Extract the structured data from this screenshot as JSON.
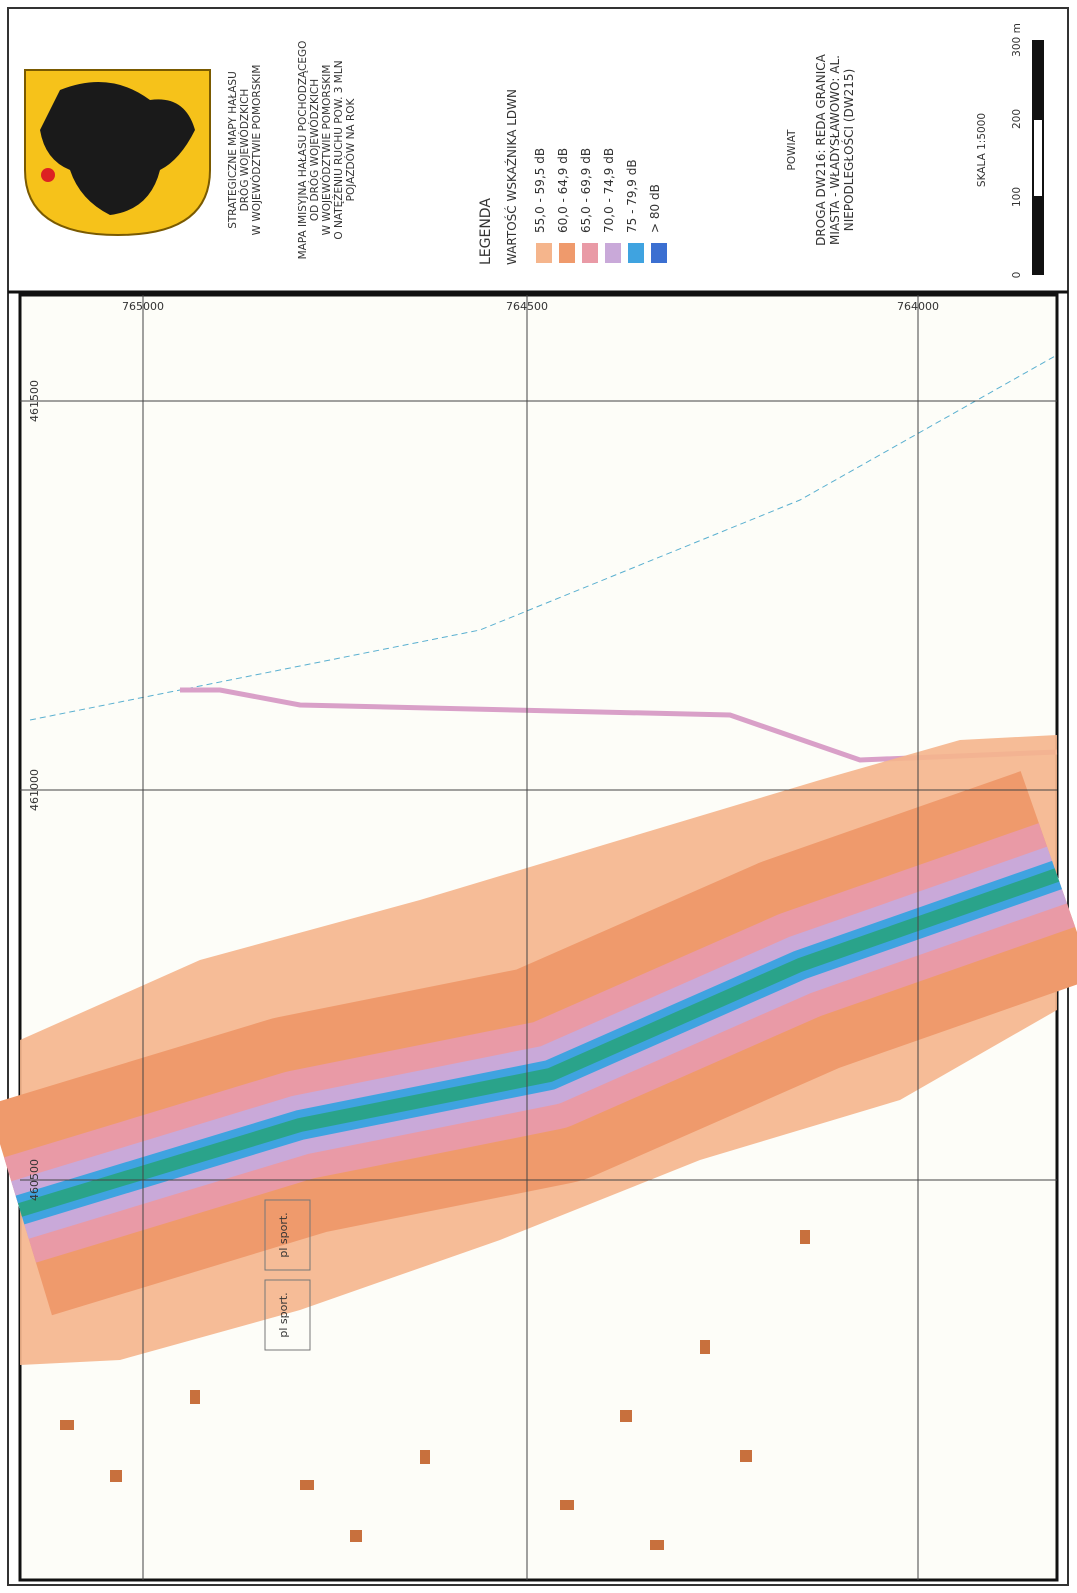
{
  "header": {
    "title_lines": [
      "STRATEGICZNE MAPY HAŁASU",
      "DRÓG WOJEWÓDZKICH",
      "W WOJEWÓDZTWIE POMORSKIM"
    ],
    "description_lines": [
      "MAPA IMISYJNA HAŁASU POCHODZĄCEGO",
      "OD DRÓG WOJEWÓDZKICH",
      "W WOJEWÓDZTWIE POMORSKIM",
      "O NATĘŻENIU RUCHU POW. 3 MLN",
      "POJAZDÓW NA ROK"
    ]
  },
  "legend": {
    "title": "LEGENDA",
    "subtitle": "WARTOŚĆ WSKAŹNIKA LDWN",
    "items": [
      {
        "label": "55,0 - 59,5 dB",
        "color": "#f5b58c"
      },
      {
        "label": "60,0 - 64,9 dB",
        "color": "#ef9a6c"
      },
      {
        "label": "65,0 - 69,9 dB",
        "color": "#e99aa6"
      },
      {
        "label": "70,0 - 74,9 dB",
        "color": "#c9a9d9"
      },
      {
        "label": "75 - 79,9 dB",
        "color": "#3fa3e0"
      },
      {
        "label": "> 80 dB",
        "color": "#3b6fd1"
      }
    ]
  },
  "powiat": "POWIAT",
  "road_lines": [
    "DROGA DW216: REDA GRANICA",
    "MIASTA - WŁADYSŁAWOWO: AL.",
    "NIEPODLEGŁOŚCI (DW215)"
  ],
  "scale": {
    "label": "SKALA 1:5000",
    "ticks": [
      "0",
      "100",
      "200",
      "300 m"
    ]
  },
  "grid": {
    "x_labels": [
      "765000",
      "764500",
      "764000"
    ],
    "y_labels": [
      "461500",
      "461000",
      "460500"
    ]
  },
  "map_labels": [
    "pl sport.",
    "pl sport."
  ]
}
